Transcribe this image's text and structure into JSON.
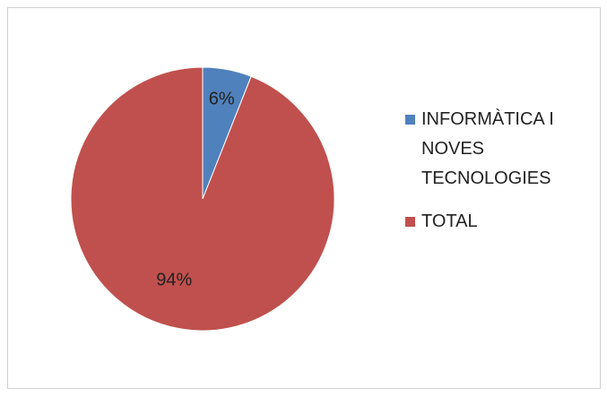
{
  "chart_data": {
    "type": "pie",
    "categories": [
      "INFORMÀTICA I NOVES TECNOLOGIES",
      "TOTAL"
    ],
    "values": [
      6,
      94
    ],
    "value_labels": [
      "6%",
      "94%"
    ],
    "colors": [
      "#4f81bd",
      "#c0504d"
    ],
    "legend": "right"
  }
}
